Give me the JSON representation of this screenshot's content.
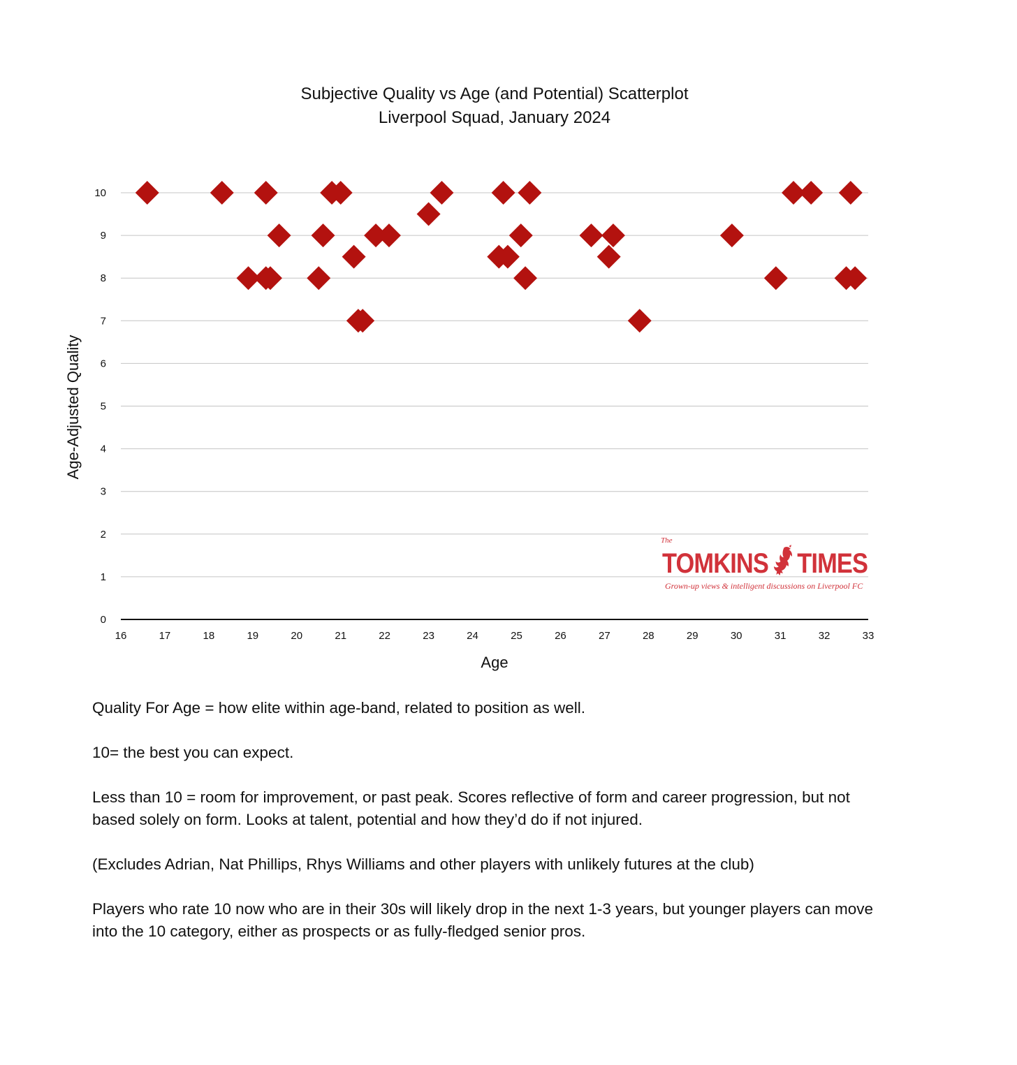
{
  "chart_data": {
    "type": "scatter",
    "title": "Subjective Quality vs Age (and Potential) Scatterplot",
    "subtitle": "Liverpool Squad, January 2024",
    "xlabel": "Age",
    "ylabel": "Age-Adjusted Quality",
    "xlim": [
      16,
      33
    ],
    "ylim": [
      0,
      10
    ],
    "xticks": [
      16,
      17,
      18,
      19,
      20,
      21,
      22,
      23,
      24,
      25,
      26,
      27,
      28,
      29,
      30,
      31,
      32,
      33
    ],
    "yticks": [
      0,
      1,
      2,
      3,
      4,
      5,
      6,
      7,
      8,
      9,
      10
    ],
    "grid": "horizontal",
    "marker": "diamond",
    "marker_color": "#b3120f",
    "points": [
      {
        "x": 16.6,
        "y": 10
      },
      {
        "x": 18.3,
        "y": 10
      },
      {
        "x": 19.3,
        "y": 10
      },
      {
        "x": 20.8,
        "y": 10
      },
      {
        "x": 21.0,
        "y": 10
      },
      {
        "x": 23.3,
        "y": 10
      },
      {
        "x": 24.7,
        "y": 10
      },
      {
        "x": 25.3,
        "y": 10
      },
      {
        "x": 31.3,
        "y": 10
      },
      {
        "x": 31.7,
        "y": 10
      },
      {
        "x": 32.6,
        "y": 10
      },
      {
        "x": 23.0,
        "y": 9.5
      },
      {
        "x": 19.6,
        "y": 9
      },
      {
        "x": 20.6,
        "y": 9
      },
      {
        "x": 21.8,
        "y": 9
      },
      {
        "x": 22.1,
        "y": 9
      },
      {
        "x": 25.1,
        "y": 9
      },
      {
        "x": 26.7,
        "y": 9
      },
      {
        "x": 27.2,
        "y": 9
      },
      {
        "x": 29.9,
        "y": 9
      },
      {
        "x": 21.3,
        "y": 8.5
      },
      {
        "x": 24.6,
        "y": 8.5
      },
      {
        "x": 24.8,
        "y": 8.5
      },
      {
        "x": 27.1,
        "y": 8.5
      },
      {
        "x": 18.9,
        "y": 8
      },
      {
        "x": 19.3,
        "y": 8
      },
      {
        "x": 19.4,
        "y": 8
      },
      {
        "x": 20.5,
        "y": 8
      },
      {
        "x": 25.2,
        "y": 8
      },
      {
        "x": 30.9,
        "y": 8
      },
      {
        "x": 32.5,
        "y": 8
      },
      {
        "x": 32.7,
        "y": 8
      },
      {
        "x": 21.4,
        "y": 7
      },
      {
        "x": 21.5,
        "y": 7
      },
      {
        "x": 27.8,
        "y": 7
      }
    ]
  },
  "logo": {
    "the": "The",
    "word1": "TOMKINS",
    "word2": "TIMES",
    "tagline": "Grown-up views & intelligent discussions on Liverpool FC",
    "color": "#d1323a"
  },
  "notes": [
    "Quality For Age = how elite within age-band, related to position as well.",
    "10= the best you can expect.",
    "Less than 10 = room for improvement, or past peak. Scores reflective of form and career progression, but not based solely on form. Looks at talent, potential and how they’d do if not injured.",
    "(Excludes Adrian, Nat Phillips, Rhys Williams and other players with unlikely futures at the club)",
    "Players who rate 10 now who are in their 30s will likely drop in the next 1-3 years, but younger players can move into the 10 category, either as prospects or as fully-fledged senior pros."
  ]
}
